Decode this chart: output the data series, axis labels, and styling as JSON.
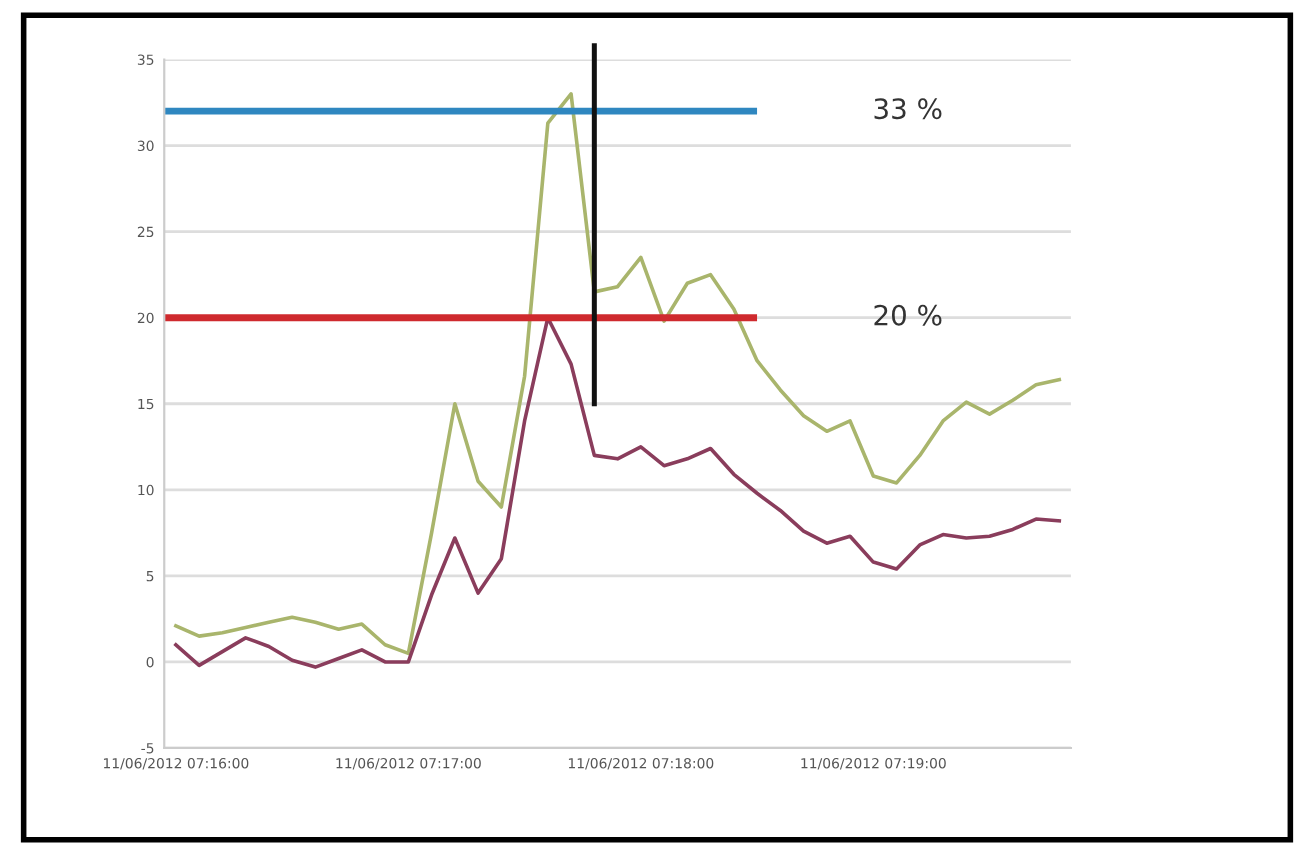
{
  "chart_data": {
    "type": "line",
    "categories": [
      "11/06/2012 07:16:00",
      null,
      null,
      null,
      null,
      null,
      null,
      null,
      null,
      null,
      "11/06/2012 07:17:00",
      null,
      null,
      null,
      null,
      null,
      null,
      null,
      null,
      null,
      "11/06/2012 07:18:00",
      null,
      null,
      null,
      null,
      null,
      null,
      null,
      null,
      null,
      "11/06/2012 07:19:00",
      null,
      null,
      null,
      null,
      null,
      null,
      null,
      null
    ],
    "ylim": [
      -5,
      35
    ],
    "yticks": [
      -5,
      0,
      5,
      10,
      15,
      20,
      25,
      30,
      35
    ],
    "grid": "y",
    "series": [
      {
        "color": "#a9b56c",
        "values": [
          2.1,
          1.5,
          1.7,
          2.0,
          2.3,
          2.6,
          2.3,
          1.9,
          2.2,
          1.0,
          0.5,
          7.5,
          15.0,
          10.5,
          9.0,
          16.6,
          31.3,
          33.0,
          21.5,
          21.8,
          23.5,
          19.8,
          22.0,
          22.5,
          20.5,
          17.5,
          15.8,
          14.3,
          13.4,
          14.0,
          10.8,
          10.4,
          12.0,
          14.0,
          15.1,
          14.4,
          15.2,
          16.1,
          16.4
        ]
      },
      {
        "color": "#8a3d5c",
        "values": [
          1.0,
          -0.2,
          0.6,
          1.4,
          0.9,
          0.1,
          -0.3,
          0.2,
          0.7,
          0.0,
          0.0,
          3.9,
          7.2,
          4.0,
          6.0,
          14.0,
          20.0,
          17.3,
          12.0,
          11.8,
          12.5,
          11.4,
          11.8,
          12.4,
          10.9,
          9.8,
          8.8,
          7.6,
          6.9,
          7.3,
          5.8,
          5.4,
          6.8,
          7.4,
          7.2,
          7.3,
          7.7,
          8.3,
          8.2
        ]
      }
    ],
    "ref_lines": [
      {
        "axis": "y",
        "value": 32,
        "color": "#2f87c0"
      },
      {
        "axis": "y",
        "value": 20,
        "color": "#cf2a2e"
      }
    ],
    "annotations": [
      "33 %",
      "20 %"
    ]
  }
}
